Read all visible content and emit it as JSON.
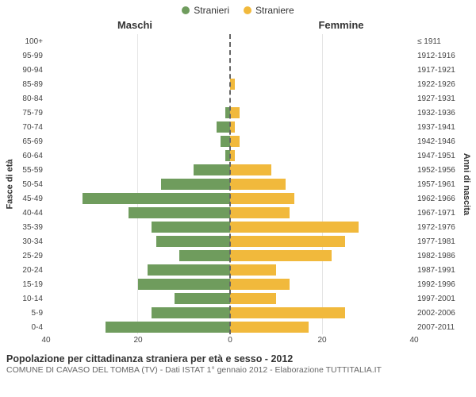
{
  "legend": {
    "male": "Stranieri",
    "female": "Straniere"
  },
  "headers": {
    "left": "Maschi",
    "right": "Femmine"
  },
  "y_left_title": "Fasce di età",
  "y_right_title": "Anni di nascita",
  "footer": {
    "title": "Popolazione per cittadinanza straniera per età e sesso - 2012",
    "sub": "COMUNE DI CAVASO DEL TOMBA (TV) - Dati ISTAT 1° gennaio 2012 - Elaborazione TUTTITALIA.IT"
  },
  "type": "population-pyramid",
  "colors": {
    "male": "#6f9c5d",
    "female": "#f1b93c",
    "grid": "#e5e5e5",
    "axis": "#666666",
    "background": "#ffffff",
    "text": "#333333"
  },
  "x_axis": {
    "max": 40,
    "ticks_left": [
      40,
      20,
      0
    ],
    "ticks_right": [
      0,
      20,
      40
    ]
  },
  "rows": [
    {
      "age": "100+",
      "birth": "≤ 1911",
      "m": 0,
      "f": 0
    },
    {
      "age": "95-99",
      "birth": "1912-1916",
      "m": 0,
      "f": 0
    },
    {
      "age": "90-94",
      "birth": "1917-1921",
      "m": 0,
      "f": 0
    },
    {
      "age": "85-89",
      "birth": "1922-1926",
      "m": 0,
      "f": 1
    },
    {
      "age": "80-84",
      "birth": "1927-1931",
      "m": 0,
      "f": 0
    },
    {
      "age": "75-79",
      "birth": "1932-1936",
      "m": 1,
      "f": 2
    },
    {
      "age": "70-74",
      "birth": "1937-1941",
      "m": 3,
      "f": 1
    },
    {
      "age": "65-69",
      "birth": "1942-1946",
      "m": 2,
      "f": 2
    },
    {
      "age": "60-64",
      "birth": "1947-1951",
      "m": 1,
      "f": 1
    },
    {
      "age": "55-59",
      "birth": "1952-1956",
      "m": 8,
      "f": 9
    },
    {
      "age": "50-54",
      "birth": "1957-1961",
      "m": 15,
      "f": 12
    },
    {
      "age": "45-49",
      "birth": "1962-1966",
      "m": 32,
      "f": 14
    },
    {
      "age": "40-44",
      "birth": "1967-1971",
      "m": 22,
      "f": 13
    },
    {
      "age": "35-39",
      "birth": "1972-1976",
      "m": 17,
      "f": 28
    },
    {
      "age": "30-34",
      "birth": "1977-1981",
      "m": 16,
      "f": 25
    },
    {
      "age": "25-29",
      "birth": "1982-1986",
      "m": 11,
      "f": 22
    },
    {
      "age": "20-24",
      "birth": "1987-1991",
      "m": 18,
      "f": 10
    },
    {
      "age": "15-19",
      "birth": "1992-1996",
      "m": 20,
      "f": 13
    },
    {
      "age": "10-14",
      "birth": "1997-2001",
      "m": 12,
      "f": 10
    },
    {
      "age": "5-9",
      "birth": "2002-2006",
      "m": 17,
      "f": 25
    },
    {
      "age": "0-4",
      "birth": "2007-2011",
      "m": 27,
      "f": 17
    }
  ]
}
